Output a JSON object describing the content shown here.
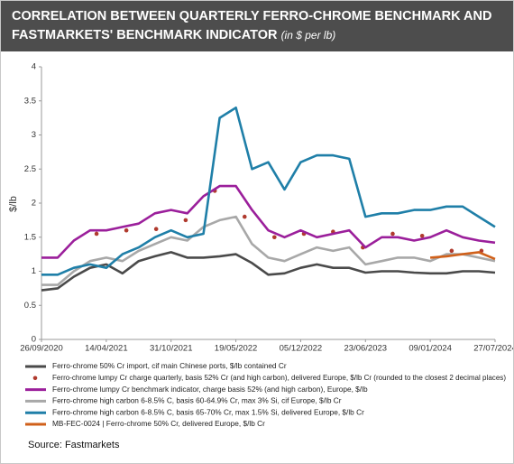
{
  "chart_data": {
    "type": "line",
    "title": "CORRELATION BETWEEN QUARTERLY FERRO-CHROME BENCHMARK AND FASTMARKETS' BENCHMARK INDICATOR",
    "subtitle": "(in $ per lb)",
    "ylabel": "$/lb",
    "source": "Source: Fastmarkets",
    "grid": false,
    "legend": "bottom",
    "x": [
      "26/09/2020",
      "15/11/2020",
      "04/01/2021",
      "23/02/2021",
      "14/04/2021",
      "03/06/2021",
      "23/07/2021",
      "11/09/2021",
      "31/10/2021",
      "20/12/2021",
      "08/02/2022",
      "30/03/2022",
      "19/05/2022",
      "08/07/2022",
      "27/08/2022",
      "16/10/2022",
      "05/12/2022",
      "24/01/2023",
      "15/03/2023",
      "04/05/2023",
      "23/06/2023",
      "12/08/2023",
      "01/10/2023",
      "20/11/2023",
      "09/01/2024",
      "28/02/2024",
      "18/04/2024",
      "07/06/2024",
      "27/07/2024"
    ],
    "xlim": [
      "26/09/2020",
      "27/07/2024"
    ],
    "xticks": [
      "26/09/2020",
      "14/04/2021",
      "31/10/2021",
      "19/05/2022",
      "05/12/2022",
      "23/06/2023",
      "09/01/2024",
      "27/07/2024"
    ],
    "ylim": [
      0,
      4
    ],
    "yticks": [
      0,
      0.5,
      1,
      1.5,
      2,
      2.5,
      3,
      3.5,
      4
    ],
    "series": [
      {
        "name": "Ferro-chrome 50% Cr import, cif main Chinese ports, $/lb contained Cr",
        "color": "#4a4a4a",
        "values": [
          0.72,
          0.75,
          0.92,
          1.05,
          1.1,
          0.97,
          1.15,
          1.22,
          1.28,
          1.2,
          1.2,
          1.22,
          1.25,
          1.12,
          0.95,
          0.97,
          1.05,
          1.1,
          1.05,
          1.05,
          0.98,
          1.0,
          1.0,
          0.98,
          0.97,
          0.97,
          1.0,
          1.0,
          0.98
        ]
      },
      {
        "name": "Ferro-chrome lumpy Cr charge quarterly, basis 52% Cr (and high carbon), delivered Europe, $/lb Cr (rounded to the closest 2 decimal places)",
        "color": "#b03a2e",
        "mode": "markers",
        "x": [
          "15/03/2021",
          "15/06/2021",
          "15/09/2021",
          "15/12/2021",
          "15/03/2022",
          "15/06/2022",
          "15/09/2022",
          "15/12/2022",
          "15/03/2023",
          "15/06/2023",
          "15/09/2023",
          "15/12/2023",
          "15/03/2024",
          "15/06/2024"
        ],
        "values": [
          1.55,
          1.6,
          1.62,
          1.75,
          2.18,
          1.8,
          1.5,
          1.55,
          1.58,
          1.35,
          1.55,
          1.52,
          1.3,
          1.3
        ]
      },
      {
        "name": "Ferro-chrome lumpy Cr benchmark indicator, charge basis 52% (and high carbon), Europe, $/lb",
        "color": "#9b1f9b",
        "values": [
          1.2,
          1.2,
          1.45,
          1.6,
          1.6,
          1.65,
          1.7,
          1.85,
          1.9,
          1.85,
          2.1,
          2.25,
          2.25,
          1.9,
          1.6,
          1.5,
          1.6,
          1.5,
          1.55,
          1.6,
          1.35,
          1.5,
          1.5,
          1.45,
          1.5,
          1.6,
          1.5,
          1.45,
          1.42
        ]
      },
      {
        "name": "Ferro-chrome high carbon 6-8.5% C, basis 60-64.9% Cr, max 3% Si, cif Europe, $/lb Cr",
        "color": "#a8a8a8",
        "values": [
          0.8,
          0.8,
          1.0,
          1.15,
          1.2,
          1.15,
          1.3,
          1.4,
          1.5,
          1.45,
          1.65,
          1.75,
          1.8,
          1.4,
          1.2,
          1.15,
          1.25,
          1.35,
          1.3,
          1.35,
          1.1,
          1.15,
          1.2,
          1.2,
          1.15,
          1.25,
          1.25,
          1.2,
          1.15
        ]
      },
      {
        "name": "Ferro-chrome high carbon 6-8.5% C, basis 65-70% Cr, max 1.5% Si, delivered Europe, $/lb Cr",
        "color": "#1f7fa8",
        "values": [
          0.95,
          0.95,
          1.05,
          1.1,
          1.05,
          1.25,
          1.35,
          1.5,
          1.6,
          1.5,
          1.55,
          3.25,
          3.4,
          2.5,
          2.6,
          2.2,
          2.6,
          2.7,
          2.7,
          2.65,
          1.8,
          1.85,
          1.85,
          1.9,
          1.9,
          1.95,
          1.95,
          1.8,
          1.65
        ]
      },
      {
        "name": "MB-FEC-0024 | Ferro-chrome 50% Cr, delivered Europe, $/lb Cr",
        "color": "#d0601a",
        "values": [
          null,
          null,
          null,
          null,
          null,
          null,
          null,
          null,
          null,
          null,
          null,
          null,
          null,
          null,
          null,
          null,
          null,
          null,
          null,
          null,
          null,
          null,
          null,
          null,
          1.2,
          1.22,
          1.25,
          1.28,
          1.18
        ]
      }
    ]
  }
}
